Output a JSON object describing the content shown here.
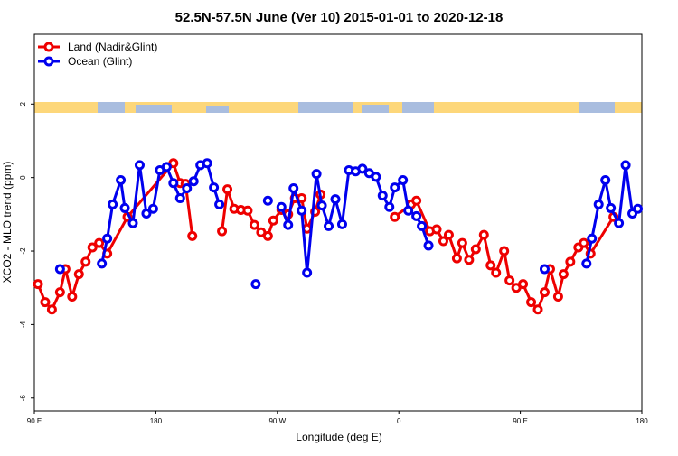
{
  "chart_data": {
    "type": "line",
    "title": "52.5N-57.5N June (Ver 10)   2015-01-01 to 2020-12-18",
    "xlabel": "Longitude (deg E)",
    "ylabel": "XCO2 - MLO trend (ppm)",
    "xlim": [
      90,
      540
    ],
    "ylim": [
      -6.35,
      3.9
    ],
    "xticks": [
      {
        "value": 90,
        "label": "90 E"
      },
      180,
      {
        "value": 270,
        "label": "90 W"
      },
      {
        "value": 360,
        "label": "0"
      },
      {
        "value": 450,
        "label": "90 E"
      },
      {
        "value": 540,
        "label": "180"
      }
    ],
    "yticks": [
      2,
      0,
      -2,
      -4,
      -6
    ],
    "legend": "upper left",
    "series": [
      {
        "name": "Land (Nadir&Glint)",
        "color": "#ee0000",
        "x": [
          92.7,
          98,
          103,
          109,
          113,
          118,
          123,
          128,
          133,
          138,
          144,
          159,
          193,
          198,
          202,
          207,
          null,
          229,
          233,
          238,
          243,
          248,
          253,
          258,
          263,
          267,
          273,
          278,
          283,
          288,
          292,
          298,
          302,
          null,
          357,
          369,
          373,
          383,
          388,
          393,
          397,
          403,
          407,
          412,
          417,
          423,
          428,
          432,
          438,
          442,
          447,
          452,
          458,
          463,
          468,
          472,
          478,
          482,
          487,
          493,
          497,
          502,
          519
        ],
        "values": [
          -2.9,
          -3.39,
          -3.59,
          -3.12,
          -2.49,
          -3.24,
          -2.63,
          -2.29,
          -1.9,
          -1.78,
          -2.07,
          -1.07,
          0.39,
          -0.15,
          -0.17,
          -1.59,
          null,
          -1.46,
          -0.32,
          -0.85,
          -0.88,
          -0.9,
          -1.29,
          -1.49,
          -1.59,
          -1.17,
          -0.88,
          -1.0,
          -0.56,
          -0.56,
          -1.39,
          -0.93,
          -0.46,
          null,
          -1.07,
          -0.73,
          -0.63,
          -1.46,
          -1.41,
          -1.73,
          -1.56,
          -2.2,
          -1.78,
          -2.24,
          -1.95,
          -1.56,
          -2.39,
          -2.59,
          -2.0,
          -2.8,
          -3.0,
          -2.9,
          -3.39,
          -3.59,
          -3.12,
          -2.49,
          -3.24,
          -2.63,
          -2.29,
          -1.9,
          -1.78,
          -2.07,
          -1.07
        ]
      },
      {
        "name": "Ocean (Glint)",
        "color": "#0000ee",
        "x": [
          109,
          null,
          140,
          144,
          148,
          154,
          157,
          163,
          168,
          173,
          178,
          183,
          188,
          193,
          198,
          203,
          208,
          213,
          218,
          223,
          227,
          null,
          254,
          null,
          263,
          null,
          273,
          278,
          282,
          288,
          292,
          299,
          303,
          308,
          313,
          318,
          323,
          328,
          333,
          338,
          343,
          348,
          353,
          357,
          363,
          367,
          373,
          377,
          382,
          null,
          468,
          null,
          499,
          503,
          508,
          513,
          517,
          523,
          528,
          533,
          537
        ],
        "values": [
          -2.49,
          null,
          -2.34,
          -1.66,
          -0.73,
          -0.07,
          -0.83,
          -1.24,
          0.34,
          -0.98,
          -0.85,
          0.2,
          0.29,
          -0.15,
          -0.56,
          -0.29,
          -0.1,
          0.34,
          0.39,
          -0.27,
          -0.73,
          null,
          -2.9,
          null,
          -0.63,
          null,
          -0.8,
          -1.29,
          -0.29,
          -0.9,
          -2.59,
          0.1,
          -0.76,
          -1.32,
          -0.59,
          -1.27,
          0.2,
          0.17,
          0.24,
          0.12,
          0.02,
          -0.49,
          -0.8,
          -0.27,
          -0.07,
          -0.9,
          -1.05,
          -1.32,
          -1.85,
          null,
          -2.49,
          null,
          -2.34,
          -1.66,
          -0.73,
          -0.07,
          -0.83,
          -1.24,
          0.34,
          -0.98,
          -0.85
        ]
      }
    ]
  }
}
